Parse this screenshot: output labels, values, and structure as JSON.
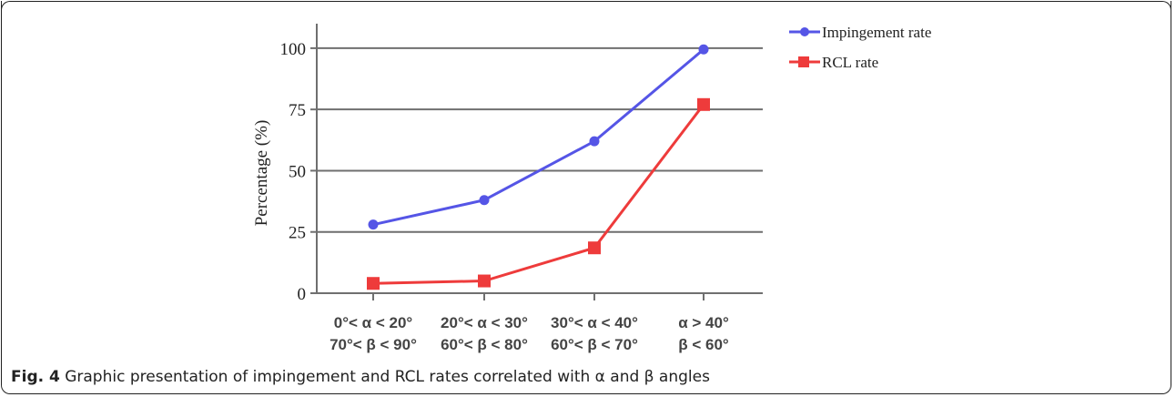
{
  "chart_data": {
    "type": "line",
    "categories": [
      [
        "0°< α < 20°",
        "70°< β < 90°"
      ],
      [
        "20°< α < 30°",
        "60°< β < 80°"
      ],
      [
        "30°< α < 40°",
        "60°< β < 70°"
      ],
      [
        "α > 40°",
        "β < 60°"
      ]
    ],
    "series": [
      {
        "name": "Impingement rate",
        "values": [
          28,
          38,
          62,
          99.5
        ],
        "color": "#5555e6",
        "marker": "circle"
      },
      {
        "name": "RCL rate",
        "values": [
          4,
          5,
          18.5,
          77
        ],
        "color": "#ee3b3b",
        "marker": "square"
      }
    ],
    "ylabel": "Percentage (%)",
    "yticks": [
      0,
      25,
      50,
      75,
      100
    ],
    "ylim": [
      0,
      110
    ],
    "grid": true,
    "legend": "top-right"
  },
  "caption": {
    "label": "Fig. 4",
    "text": " Graphic presentation of impingement and RCL rates correlated with α and β angles"
  }
}
